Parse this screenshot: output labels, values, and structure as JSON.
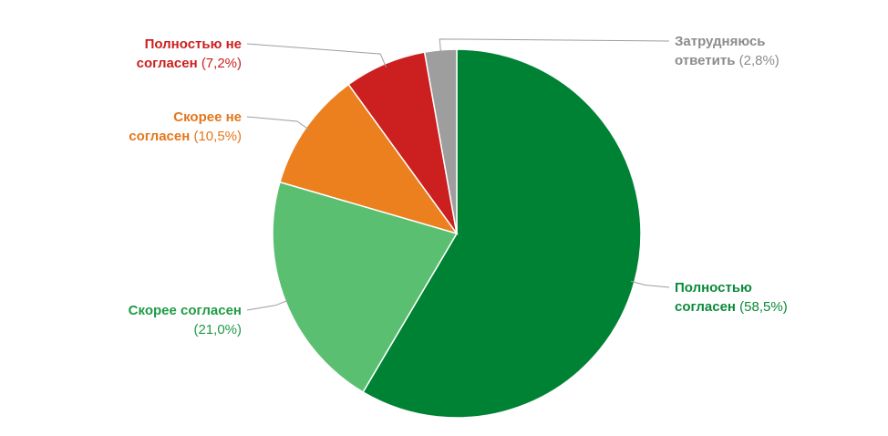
{
  "chart_data": {
    "type": "pie",
    "categories": [
      "Полностью согласен",
      "Скорее согласен",
      "Скорее не согласен",
      "Полностью не согласен",
      "Затрудняюсь ответить"
    ],
    "values": [
      58.5,
      21.0,
      10.5,
      7.2,
      2.8
    ],
    "value_labels": [
      "(58,5%)",
      "(21,0%)",
      "(10,5%)",
      "(7,2%)",
      "(2,8%)"
    ],
    "colors": [
      "#008234",
      "#5bbf72",
      "#ec7f1e",
      "#cc1f1f",
      "#9e9e9e"
    ],
    "label_colors": [
      "#0b8a3a",
      "#1f9a45",
      "#e5761a",
      "#cc1f1f",
      "#8c8c8c"
    ]
  }
}
